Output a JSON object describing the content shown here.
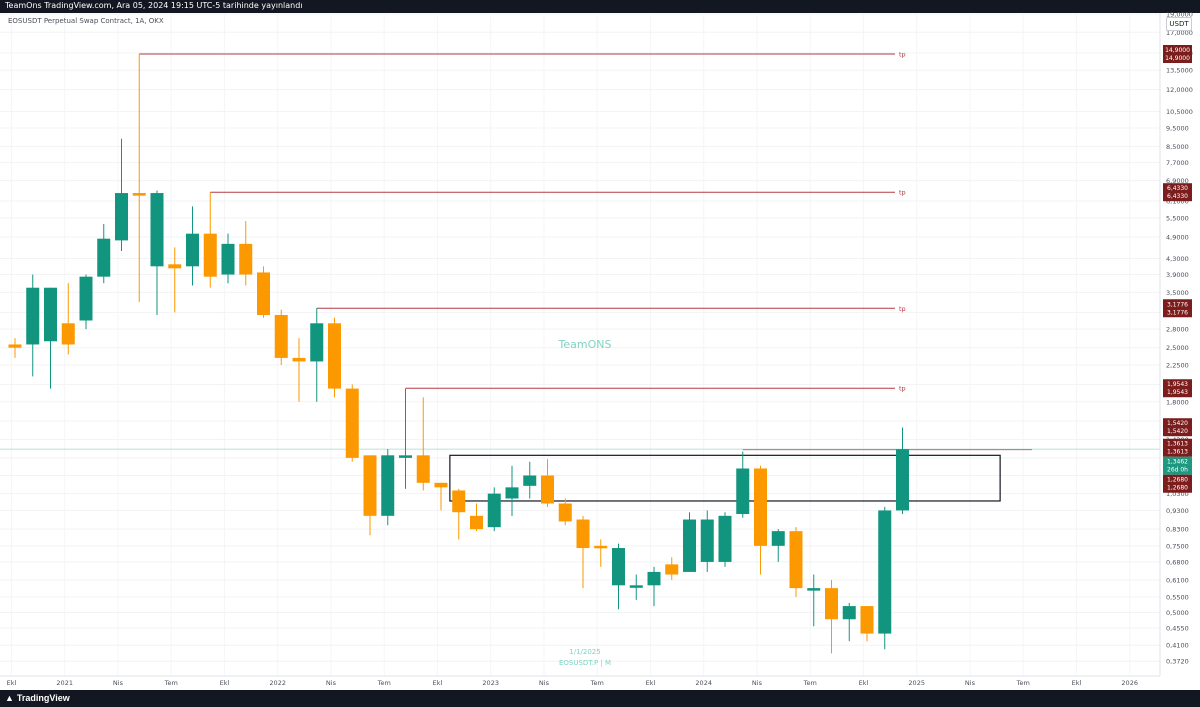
{
  "header": {
    "published": "TeamOns TradingView.com, Ara 05, 2024 19:15 UTC-5 tarihinde yayınlandı",
    "symbol": "EOSUSDT Perpetual Swap Contract, 1A, OKX",
    "currency": "USDT"
  },
  "footer": {
    "logo_text": "TradingView"
  },
  "watermark": {
    "name": "TeamONS",
    "date": "1/1/2025",
    "symbol": "EOSUSDT.P | M"
  },
  "colors": {
    "up": "#12957f",
    "down": "#fc9800",
    "tp_line": "#b43a47",
    "price_tag": "#7b1d1d",
    "current": "#1e9980",
    "zone": "#131722"
  },
  "chart_data": {
    "type": "candlestick",
    "scale": "log",
    "ylim": [
      0.34,
      19.0
    ],
    "y_ticks": [
      "19,0000",
      "17,0000",
      "15,0000",
      "13,5000",
      "12,0000",
      "10,5000",
      "9,5000",
      "8,5000",
      "7,7000",
      "6,9000",
      "6,1000",
      "5,5000",
      "4,9000",
      "4,3000",
      "3,9000",
      "3,5000",
      "3,1000",
      "2,8000",
      "2,5000",
      "2,2500",
      "2,0000",
      "1,8000",
      "1,6000",
      "1,4300",
      "1,2800",
      "1,1500",
      "1,0300",
      "0,9300",
      "0,8300",
      "0,7500",
      "0,6800",
      "0,6100",
      "0,5500",
      "0,5000",
      "0,4550",
      "0,4100",
      "0,3720"
    ],
    "x_labels": [
      "Ekl",
      "2021",
      "Nis",
      "Tem",
      "Ekl",
      "2022",
      "Nis",
      "Tem",
      "Ekl",
      "2023",
      "Nis",
      "Tem",
      "Ekl",
      "2024",
      "Nis",
      "Tem",
      "Ekl",
      "2025",
      "Nis",
      "Tem",
      "Ekl",
      "2026",
      "Nis"
    ],
    "candles": [
      {
        "o": 2.55,
        "h": 2.65,
        "l": 2.35,
        "c": 2.5
      },
      {
        "o": 2.55,
        "h": 3.9,
        "l": 2.1,
        "c": 3.6
      },
      {
        "o": 2.6,
        "h": 3.6,
        "l": 1.95,
        "c": 3.6
      },
      {
        "o": 2.9,
        "h": 3.7,
        "l": 2.4,
        "c": 2.55
      },
      {
        "o": 2.95,
        "h": 3.9,
        "l": 2.8,
        "c": 3.85
      },
      {
        "o": 3.85,
        "h": 5.3,
        "l": 3.7,
        "c": 4.85
      },
      {
        "o": 4.8,
        "h": 8.9,
        "l": 4.5,
        "c": 6.4
      },
      {
        "o": 6.4,
        "h": 14.9,
        "l": 3.3,
        "c": 6.3
      },
      {
        "o": 4.1,
        "h": 6.5,
        "l": 3.05,
        "c": 6.4
      },
      {
        "o": 4.15,
        "h": 4.6,
        "l": 3.1,
        "c": 4.05
      },
      {
        "o": 4.1,
        "h": 5.9,
        "l": 3.65,
        "c": 5.0
      },
      {
        "o": 5.0,
        "h": 6.43,
        "l": 3.6,
        "c": 3.85
      },
      {
        "o": 3.9,
        "h": 5.0,
        "l": 3.7,
        "c": 4.7
      },
      {
        "o": 4.7,
        "h": 5.4,
        "l": 3.65,
        "c": 3.9
      },
      {
        "o": 3.95,
        "h": 4.1,
        "l": 3.0,
        "c": 3.05
      },
      {
        "o": 3.05,
        "h": 3.15,
        "l": 2.25,
        "c": 2.35
      },
      {
        "o": 2.35,
        "h": 2.65,
        "l": 1.8,
        "c": 2.3
      },
      {
        "o": 2.3,
        "h": 3.18,
        "l": 1.8,
        "c": 2.9
      },
      {
        "o": 2.9,
        "h": 3.0,
        "l": 1.85,
        "c": 1.95
      },
      {
        "o": 1.95,
        "h": 2.0,
        "l": 1.25,
        "c": 1.28
      },
      {
        "o": 1.3,
        "h": 1.3,
        "l": 0.8,
        "c": 0.9
      },
      {
        "o": 0.9,
        "h": 1.35,
        "l": 0.85,
        "c": 1.3
      },
      {
        "o": 1.28,
        "h": 1.95,
        "l": 1.06,
        "c": 1.3
      },
      {
        "o": 1.3,
        "h": 1.85,
        "l": 1.05,
        "c": 1.1
      },
      {
        "o": 1.1,
        "h": 1.1,
        "l": 0.93,
        "c": 1.07
      },
      {
        "o": 1.05,
        "h": 1.06,
        "l": 0.78,
        "c": 0.92
      },
      {
        "o": 0.9,
        "h": 0.97,
        "l": 0.82,
        "c": 0.83
      },
      {
        "o": 0.84,
        "h": 1.07,
        "l": 0.82,
        "c": 1.03
      },
      {
        "o": 1.0,
        "h": 1.22,
        "l": 0.9,
        "c": 1.07
      },
      {
        "o": 1.08,
        "h": 1.25,
        "l": 1.0,
        "c": 1.15
      },
      {
        "o": 1.15,
        "h": 1.27,
        "l": 0.95,
        "c": 0.97
      },
      {
        "o": 0.97,
        "h": 1.0,
        "l": 0.85,
        "c": 0.87
      },
      {
        "o": 0.88,
        "h": 0.9,
        "l": 0.58,
        "c": 0.74
      },
      {
        "o": 0.75,
        "h": 0.78,
        "l": 0.66,
        "c": 0.74
      },
      {
        "o": 0.59,
        "h": 0.76,
        "l": 0.51,
        "c": 0.74
      },
      {
        "o": 0.59,
        "h": 0.63,
        "l": 0.54,
        "c": 0.59
      },
      {
        "o": 0.59,
        "h": 0.66,
        "l": 0.52,
        "c": 0.64
      },
      {
        "o": 0.67,
        "h": 0.7,
        "l": 0.61,
        "c": 0.63
      },
      {
        "o": 0.64,
        "h": 0.92,
        "l": 0.64,
        "c": 0.88
      },
      {
        "o": 0.68,
        "h": 0.93,
        "l": 0.64,
        "c": 0.88
      },
      {
        "o": 0.68,
        "h": 0.92,
        "l": 0.66,
        "c": 0.9
      },
      {
        "o": 0.91,
        "h": 1.33,
        "l": 0.89,
        "c": 1.2
      },
      {
        "o": 1.2,
        "h": 1.22,
        "l": 0.63,
        "c": 0.75
      },
      {
        "o": 0.75,
        "h": 0.83,
        "l": 0.68,
        "c": 0.82
      },
      {
        "o": 0.82,
        "h": 0.84,
        "l": 0.55,
        "c": 0.58
      },
      {
        "o": 0.58,
        "h": 0.63,
        "l": 0.46,
        "c": 0.58
      },
      {
        "o": 0.58,
        "h": 0.61,
        "l": 0.39,
        "c": 0.48
      },
      {
        "o": 0.48,
        "h": 0.53,
        "l": 0.42,
        "c": 0.52
      },
      {
        "o": 0.52,
        "h": 0.52,
        "l": 0.42,
        "c": 0.44
      },
      {
        "o": 0.44,
        "h": 0.95,
        "l": 0.4,
        "c": 0.93
      },
      {
        "o": 0.93,
        "h": 1.54,
        "l": 0.91,
        "c": 1.35
      }
    ],
    "tp_lines": [
      {
        "price": 14.9,
        "start": 7,
        "label": "tp"
      },
      {
        "price": 6.433,
        "start": 11,
        "label": "tp"
      },
      {
        "price": 3.1776,
        "start": 17,
        "label": "tp"
      },
      {
        "price": 1.9543,
        "start": 22,
        "label": "tp"
      },
      {
        "price": 1.3462,
        "start": 41,
        "label": ""
      }
    ],
    "zone": {
      "top": 1.3,
      "bottom": 0.985,
      "start": 24.5,
      "end": 55.5
    },
    "price_tags": [
      {
        "price": 14.9,
        "lines": [
          "14,9000",
          "14,9000"
        ],
        "color": "#7b1d1d"
      },
      {
        "price": 6.433,
        "lines": [
          "6,4330",
          "6,4330"
        ],
        "color": "#7b1d1d"
      },
      {
        "price": 3.1776,
        "lines": [
          "3,1776",
          "3,1776"
        ],
        "color": "#7b1d1d"
      },
      {
        "price": 1.9543,
        "lines": [
          "1,9543",
          "1,9543"
        ],
        "color": "#7b1d1d"
      },
      {
        "price": 1.542,
        "lines": [
          "1,5420",
          "1,5420"
        ],
        "color": "#7b1d1d"
      },
      {
        "price": 1.3613,
        "lines": [
          "1,3613",
          "1,3613"
        ],
        "color": "#7b1d1d"
      },
      {
        "price": 1.3462,
        "lines": [
          "1,3462",
          "26d 0h"
        ],
        "color": "#1e9980"
      },
      {
        "price": 1.268,
        "lines": [
          "1,2680",
          "1,2680"
        ],
        "color": "#7b1d1d"
      }
    ]
  }
}
